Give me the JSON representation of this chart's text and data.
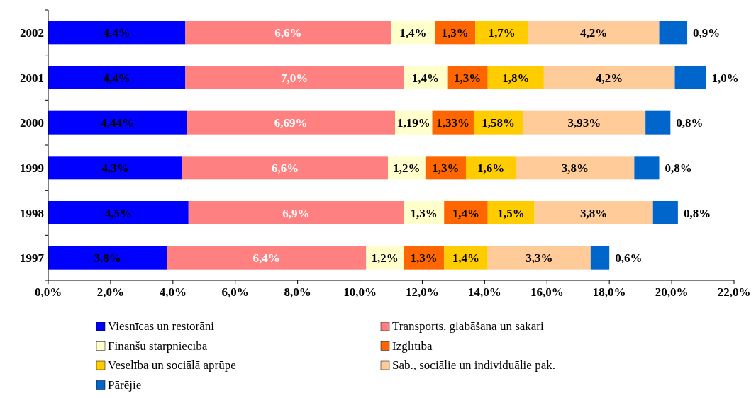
{
  "chart_data": {
    "type": "bar",
    "orientation": "horizontal",
    "stacked": true,
    "categories": [
      "2002",
      "2001",
      "2000",
      "1999",
      "1998",
      "1997"
    ],
    "xlim": [
      0,
      22
    ],
    "xticks": [
      {
        "value": 0,
        "label": "0,0%"
      },
      {
        "value": 2,
        "label": "2,0%"
      },
      {
        "value": 4,
        "label": "4,0%"
      },
      {
        "value": 6,
        "label": "6,0%"
      },
      {
        "value": 8,
        "label": "8,0%"
      },
      {
        "value": 10,
        "label": "10,0%"
      },
      {
        "value": 12,
        "label": "12,0%"
      },
      {
        "value": 14,
        "label": "14,0%"
      },
      {
        "value": 16,
        "label": "16,0%"
      },
      {
        "value": 18,
        "label": "18,0%"
      },
      {
        "value": 20,
        "label": "20,0%"
      },
      {
        "value": 22,
        "label": "22,0%"
      }
    ],
    "legend": "bottom",
    "grid": false,
    "series": [
      {
        "name": "Viesnīcas un restorāni",
        "color": "#0000ff",
        "values": [
          4.4,
          4.4,
          4.44,
          4.3,
          4.5,
          3.8
        ],
        "value_labels": [
          "4,4%",
          "4,4%",
          "4,44%",
          "4,3%",
          "4,5%",
          "3,8%"
        ]
      },
      {
        "name": "Transports, glabāšana un sakari",
        "color": "#ff8080",
        "values": [
          6.6,
          7.0,
          6.69,
          6.6,
          6.9,
          6.4
        ],
        "value_labels": [
          "6,6%",
          "7,0%",
          "6,69%",
          "6,6%",
          "6,9%",
          "6,4%"
        ]
      },
      {
        "name": "Finanšu starpniecība",
        "color": "#ffffcc",
        "values": [
          1.4,
          1.4,
          1.19,
          1.2,
          1.3,
          1.2
        ],
        "value_labels": [
          "1,4%",
          "1,4%",
          "1,19%",
          "1,2%",
          "1,3%",
          "1,2%"
        ]
      },
      {
        "name": "Izglītība",
        "color": "#ff6600",
        "values": [
          1.3,
          1.3,
          1.33,
          1.3,
          1.4,
          1.3
        ],
        "value_labels": [
          "1,3%",
          "1,3%",
          "1,33%",
          "1,3%",
          "1,4%",
          "1,3%"
        ]
      },
      {
        "name": "Veselība un sociālā aprūpe",
        "color": "#ffcc00",
        "values": [
          1.7,
          1.8,
          1.58,
          1.6,
          1.5,
          1.4
        ],
        "value_labels": [
          "1,7%",
          "1,8%",
          "1,58%",
          "1,6%",
          "1,5%",
          "1,4%"
        ]
      },
      {
        "name": "Sab., sociālie un individuālie pak.",
        "color": "#ffcc99",
        "values": [
          4.2,
          4.2,
          3.93,
          3.8,
          3.8,
          3.3
        ],
        "value_labels": [
          "4,2%",
          "4,2%",
          "3,93%",
          "3,8%",
          "3,8%",
          "3,3%"
        ]
      },
      {
        "name": "Pārējie",
        "color": "#0066cc",
        "values": [
          0.9,
          1.0,
          0.8,
          0.8,
          0.8,
          0.6
        ],
        "value_labels": [
          "0,9%",
          "1,0%",
          "0,8%",
          "0,8%",
          "0,8%",
          "0,6%"
        ]
      }
    ]
  }
}
